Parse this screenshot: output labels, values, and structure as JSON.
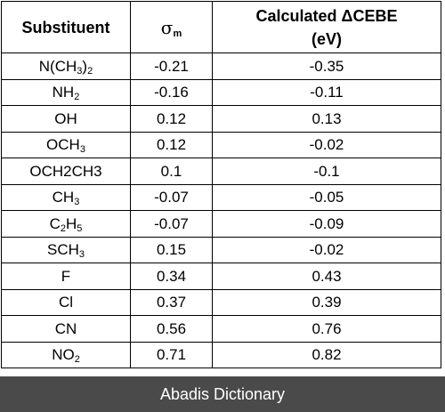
{
  "table": {
    "headers": {
      "substituent": "Substituent",
      "sigma_symbol": "σ",
      "sigma_sub": "m",
      "calc_line1": "Calculated ΔCEBE",
      "calc_line2": "(eV)"
    },
    "rows": [
      {
        "sub_parts": [
          [
            "N(CH",
            false
          ],
          [
            "3",
            true
          ],
          [
            ")",
            false
          ],
          [
            "2",
            true
          ]
        ],
        "sigma_m": "-0.21",
        "delta_cebe": "-0.35"
      },
      {
        "sub_parts": [
          [
            "NH",
            false
          ],
          [
            "2",
            true
          ]
        ],
        "sigma_m": "-0.16",
        "delta_cebe": "-0.11"
      },
      {
        "sub_parts": [
          [
            "OH",
            false
          ]
        ],
        "sigma_m": "0.12",
        "delta_cebe": "0.13"
      },
      {
        "sub_parts": [
          [
            "OCH",
            false
          ],
          [
            "3",
            true
          ]
        ],
        "sigma_m": "0.12",
        "delta_cebe": "-0.02"
      },
      {
        "sub_parts": [
          [
            "OCH2CH3",
            false
          ]
        ],
        "sigma_m": "0.1",
        "delta_cebe": "-0.1"
      },
      {
        "sub_parts": [
          [
            "CH",
            false
          ],
          [
            "3",
            true
          ]
        ],
        "sigma_m": "-0.07",
        "delta_cebe": "-0.05"
      },
      {
        "sub_parts": [
          [
            "C",
            false
          ],
          [
            "2",
            true
          ],
          [
            "H",
            false
          ],
          [
            "5",
            true
          ]
        ],
        "sigma_m": "-0.07",
        "delta_cebe": "-0.09"
      },
      {
        "sub_parts": [
          [
            "SCH",
            false
          ],
          [
            "3",
            true
          ]
        ],
        "sigma_m": "0.15",
        "delta_cebe": "-0.02"
      },
      {
        "sub_parts": [
          [
            "F",
            false
          ]
        ],
        "sigma_m": "0.34",
        "delta_cebe": "0.43"
      },
      {
        "sub_parts": [
          [
            "Cl",
            false
          ]
        ],
        "sigma_m": "0.37",
        "delta_cebe": "0.39"
      },
      {
        "sub_parts": [
          [
            "CN",
            false
          ]
        ],
        "sigma_m": "0.56",
        "delta_cebe": "0.76"
      },
      {
        "sub_parts": [
          [
            "NO",
            false
          ],
          [
            "2",
            true
          ]
        ],
        "sigma_m": "0.71",
        "delta_cebe": "0.82"
      }
    ]
  },
  "footer": {
    "text": "Abadis Dictionary"
  },
  "colors": {
    "footer_bg": "#4a4a4a",
    "footer_text": "#ffffff",
    "border": "#000000"
  }
}
